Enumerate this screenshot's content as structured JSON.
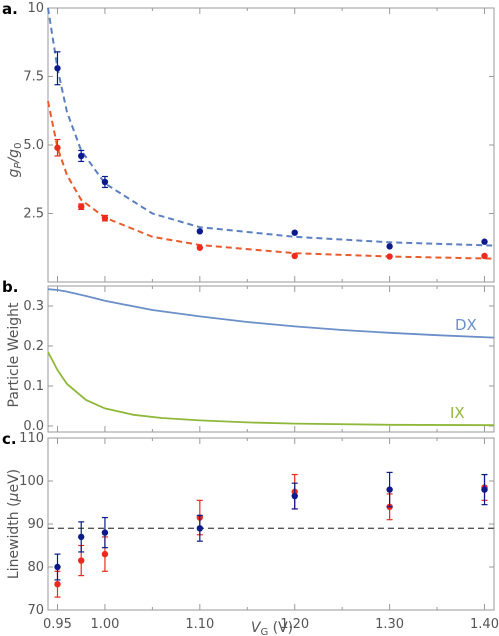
{
  "panel_letters": [
    "a.",
    "b.",
    "c."
  ],
  "colors": {
    "blue_dark": "#0c1a8c",
    "red": "#ee2a1e",
    "blue_fit": "#5b7fc0",
    "orange_fit": "#ea5a2a",
    "dx_line": "#6b8fc8",
    "ix_line": "#8fb83a",
    "ref_line": "#555555"
  },
  "shared_x": {
    "label_main": "V",
    "label_sub": "G",
    "label_unit": " (V)",
    "tick_labels": [
      "0.95",
      "1.00",
      "1.10",
      "1.20",
      "1.30",
      "1.40"
    ],
    "tick_values": [
      0.95,
      1.0,
      1.1,
      1.2,
      1.3,
      1.4
    ],
    "xlim": [
      0.94,
      1.41
    ]
  },
  "chart_data": [
    {
      "panel": "a.",
      "type": "scatter",
      "ylabel_main": "g",
      "ylabel_sub": "P",
      "ylabel_mid": "/g",
      "ylabel_sub2": "0",
      "ylim": [
        0,
        10
      ],
      "yticks": [
        0,
        2.5,
        5.0,
        7.5,
        10
      ],
      "ytick_labels": [
        "",
        "2.5",
        "5.0",
        "7.5",
        "10"
      ],
      "series": [
        {
          "color_key": "blue_dark",
          "x": [
            0.95,
            0.975,
            1.0,
            1.1,
            1.2,
            1.3,
            1.4
          ],
          "y": [
            7.8,
            4.6,
            3.65,
            1.85,
            1.8,
            1.3,
            1.47
          ],
          "err": [
            0.6,
            0.2,
            0.2,
            0.05,
            0.05,
            0.05,
            0.05
          ]
        },
        {
          "color_key": "red",
          "x": [
            0.95,
            0.975,
            1.0,
            1.1,
            1.2,
            1.3,
            1.4
          ],
          "y": [
            4.9,
            2.75,
            2.33,
            1.25,
            0.95,
            0.93,
            0.95
          ],
          "err": [
            0.3,
            0.1,
            0.1,
            0.05,
            0.05,
            0.05,
            0.05
          ]
        }
      ],
      "fits": [
        {
          "style": "dashed",
          "color_key": "blue_fit",
          "x": [
            0.94,
            0.95,
            0.96,
            0.975,
            1.0,
            1.05,
            1.1,
            1.2,
            1.3,
            1.41
          ],
          "y": [
            10.0,
            7.8,
            6.2,
            4.8,
            3.6,
            2.5,
            2.0,
            1.65,
            1.45,
            1.33
          ]
        },
        {
          "style": "dashed",
          "color_key": "orange_fit",
          "x": [
            0.94,
            0.95,
            0.96,
            0.975,
            1.0,
            1.05,
            1.1,
            1.2,
            1.3,
            1.41
          ],
          "y": [
            6.6,
            4.9,
            3.9,
            3.0,
            2.35,
            1.65,
            1.35,
            1.05,
            0.93,
            0.85
          ]
        }
      ]
    },
    {
      "panel": "b.",
      "type": "line",
      "ylabel": "Particle Weight",
      "ylim": [
        -0.015,
        0.35
      ],
      "yticks": [
        0,
        0.1,
        0.2,
        0.3
      ],
      "ytick_labels": [
        "0.0",
        "0.1",
        "0.2",
        "0.3"
      ],
      "series": [
        {
          "name": "DX",
          "color_key": "dx_line",
          "x": [
            0.94,
            0.95,
            0.96,
            0.98,
            1.0,
            1.05,
            1.1,
            1.15,
            1.2,
            1.25,
            1.3,
            1.35,
            1.41
          ],
          "y": [
            0.342,
            0.34,
            0.336,
            0.325,
            0.313,
            0.29,
            0.274,
            0.26,
            0.249,
            0.24,
            0.233,
            0.227,
            0.221
          ]
        },
        {
          "name": "IX",
          "color_key": "ix_line",
          "x": [
            0.94,
            0.95,
            0.96,
            0.98,
            1.0,
            1.03,
            1.06,
            1.1,
            1.15,
            1.2,
            1.3,
            1.41
          ],
          "y": [
            0.185,
            0.14,
            0.105,
            0.065,
            0.044,
            0.028,
            0.02,
            0.014,
            0.009,
            0.006,
            0.003,
            0.002
          ]
        }
      ]
    },
    {
      "panel": "c.",
      "type": "scatter",
      "ylabel_main": "Linewidth (",
      "ylabel_mu": "μ",
      "ylabel_end": "eV)",
      "ylim": [
        70,
        110
      ],
      "yticks": [
        70,
        80,
        90,
        100,
        110
      ],
      "ytick_labels": [
        "70",
        "80",
        "90",
        "100",
        "110"
      ],
      "reference_line": {
        "y": 89,
        "style": "dashed",
        "color_key": "ref_line"
      },
      "series": [
        {
          "color_key": "red",
          "x": [
            0.95,
            0.975,
            1.0,
            1.1,
            1.2,
            1.3,
            1.4
          ],
          "y": [
            76,
            81.5,
            83,
            91.5,
            97.5,
            94,
            98.5
          ],
          "err": [
            3,
            3.5,
            4,
            4,
            4,
            3,
            3
          ]
        },
        {
          "color_key": "blue_dark",
          "x": [
            0.95,
            0.975,
            1.0,
            1.1,
            1.2,
            1.3,
            1.4
          ],
          "y": [
            80,
            87,
            88,
            89,
            96.5,
            98,
            98
          ],
          "err": [
            3,
            3.5,
            3.5,
            3,
            3,
            4,
            3.5
          ]
        }
      ]
    }
  ]
}
